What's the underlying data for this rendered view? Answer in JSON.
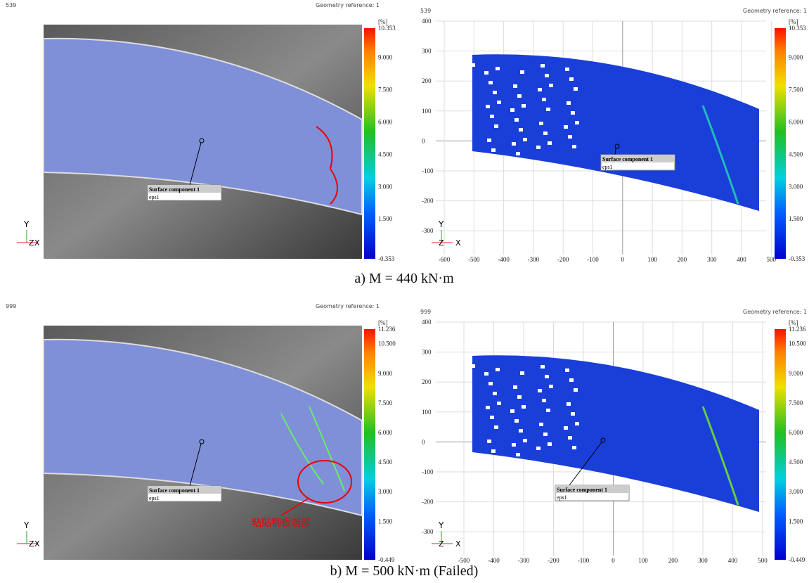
{
  "panels": [
    {
      "frame": "539",
      "geometry_reference": "Geometry reference: 1",
      "unit": "[%]",
      "scale": [
        "10.353",
        "9.000",
        "7.500",
        "6.000",
        "4.500",
        "3.000",
        "1.500",
        "-0.353"
      ],
      "probe": {
        "title": "Surface component 1",
        "quantity": "eps1"
      },
      "triad": [
        "Y",
        "Z",
        "X"
      ]
    },
    {
      "frame": "539",
      "geometry_reference": "Geometry reference: 1",
      "unit": "[%]",
      "scale": [
        "10.353",
        "9.000",
        "7.500",
        "6.000",
        "4.500",
        "3.000",
        "1.500",
        "-0.353"
      ],
      "probe": {
        "title": "Surface component 1",
        "quantity": "eps1"
      },
      "triad": [
        "Y",
        "Z",
        "X"
      ],
      "x_ticks": [
        "-600",
        "-500",
        "-400",
        "-300",
        "-200",
        "-100",
        "0",
        "100",
        "200",
        "300",
        "400",
        "500"
      ],
      "y_ticks": [
        "400",
        "300",
        "200",
        "100",
        "0",
        "-100",
        "-200",
        "-300"
      ]
    },
    {
      "frame": "999",
      "geometry_reference": "Geometry reference: 1",
      "unit": "[%]",
      "scale": [
        "11.236",
        "10.500",
        "9.000",
        "7.500",
        "6.000",
        "4.500",
        "3.000",
        "1.500",
        "-0.449"
      ],
      "probe": {
        "title": "Surface component 1",
        "quantity": "eps1"
      },
      "triad": [
        "Y",
        "Z",
        "X"
      ],
      "annotation": "粘贴钢板端部"
    },
    {
      "frame": "999",
      "geometry_reference": "Geometry reference: 1",
      "unit": "[%]",
      "scale": [
        "11.236",
        "10.500",
        "9.000",
        "7.500",
        "6.000",
        "4.500",
        "3.000",
        "1.500",
        "-0.449"
      ],
      "probe": {
        "title": "Surface component 1",
        "quantity": "eps1"
      },
      "triad": [
        "Y",
        "Z",
        "X"
      ],
      "x_ticks": [
        "-500",
        "-400",
        "-300",
        "-200",
        "-100",
        "0",
        "100",
        "200",
        "300",
        "400",
        "500"
      ],
      "y_ticks": [
        "400",
        "300",
        "200",
        "100",
        "0",
        "-100",
        "-200",
        "-300"
      ]
    }
  ],
  "captions": [
    "a) M = 440 kN·m",
    "b) M = 500 kN·m (Failed)"
  ]
}
